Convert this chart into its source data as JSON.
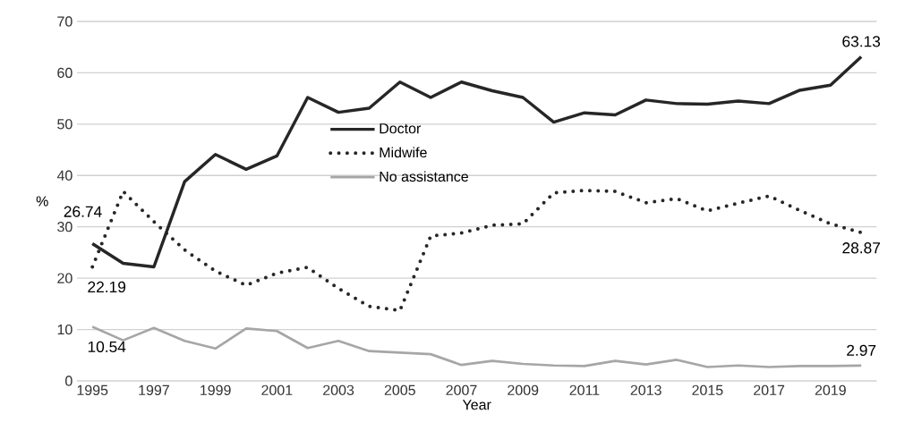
{
  "chart_data": {
    "type": "line",
    "xlabel": "Year",
    "ylabel": "%",
    "x": [
      1995,
      1996,
      1997,
      1998,
      1999,
      2000,
      2001,
      2002,
      2003,
      2004,
      2005,
      2006,
      2007,
      2008,
      2009,
      2010,
      2011,
      2012,
      2013,
      2014,
      2015,
      2016,
      2017,
      2018,
      2019,
      2020
    ],
    "xlim": [
      1994.5,
      2020.5
    ],
    "xticks": [
      1995,
      1997,
      1999,
      2001,
      2003,
      2005,
      2007,
      2009,
      2011,
      2013,
      2015,
      2017,
      2019
    ],
    "ylim": [
      0,
      70
    ],
    "yticks": [
      0,
      10,
      20,
      30,
      40,
      50,
      60,
      70
    ],
    "grid": "y",
    "legend": "center",
    "marker": "none",
    "series": [
      {
        "name": "Doctor",
        "color": "#262626",
        "line_style": "solid",
        "values": [
          26.74,
          22.9,
          22.2,
          38.8,
          44.1,
          41.2,
          43.8,
          55.2,
          52.3,
          53.1,
          58.2,
          55.2,
          58.2,
          56.5,
          55.2,
          50.4,
          52.2,
          51.8,
          54.7,
          54.0,
          53.9,
          54.5,
          54.0,
          56.6,
          57.6,
          63.13
        ],
        "value_labels": [
          "26.74",
          null,
          null,
          null,
          null,
          null,
          null,
          null,
          null,
          null,
          null,
          null,
          null,
          null,
          null,
          null,
          null,
          null,
          null,
          null,
          null,
          null,
          null,
          null,
          null,
          "63.13"
        ]
      },
      {
        "name": "Midwife",
        "color": "#262626",
        "line_style": "dotted",
        "values": [
          22.19,
          36.9,
          31.0,
          25.5,
          21.4,
          18.6,
          21.0,
          22.1,
          18.0,
          14.5,
          13.7,
          28.2,
          28.8,
          30.3,
          30.6,
          36.6,
          37.1,
          36.9,
          34.7,
          35.5,
          33.1,
          34.6,
          36.0,
          33.2,
          30.6,
          28.87
        ],
        "value_labels": [
          "22.19",
          null,
          null,
          null,
          null,
          null,
          null,
          null,
          null,
          null,
          null,
          null,
          null,
          null,
          null,
          null,
          null,
          null,
          null,
          null,
          null,
          null,
          null,
          null,
          null,
          "28.87"
        ]
      },
      {
        "name": "No assistance",
        "color": "#a6a6a6",
        "line_style": "solid",
        "values": [
          10.54,
          7.9,
          10.3,
          7.8,
          6.3,
          10.2,
          9.7,
          6.4,
          7.8,
          5.8,
          5.5,
          5.2,
          3.1,
          3.9,
          3.3,
          3.0,
          2.9,
          3.9,
          3.2,
          4.1,
          2.7,
          3.0,
          2.7,
          2.9,
          2.9,
          2.97
        ],
        "value_labels": [
          "10.54",
          null,
          null,
          null,
          null,
          null,
          null,
          null,
          null,
          null,
          null,
          null,
          null,
          null,
          null,
          null,
          null,
          null,
          null,
          null,
          null,
          null,
          null,
          null,
          null,
          "2.97"
        ]
      }
    ]
  }
}
